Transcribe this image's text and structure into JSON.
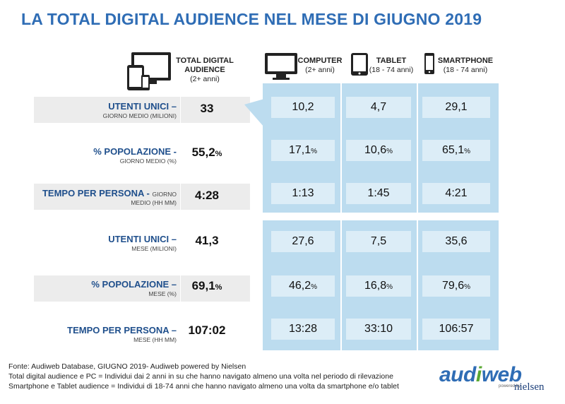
{
  "title": "LA TOTAL DIGITAL AUDIENCE NEL MESE DI GIUGNO 2019",
  "columns": [
    {
      "name": "TOTAL DIGITAL AUDIENCE",
      "sub": "(2+ anni)",
      "icon": "devices-icon"
    },
    {
      "name": "COMPUTER",
      "sub": "(2+ anni)",
      "icon": "monitor-icon"
    },
    {
      "name": "TABLET",
      "sub": "(18 - 74 anni)",
      "icon": "tablet-icon"
    },
    {
      "name": "SMARTPHONE",
      "sub": "(18 - 74 anni)",
      "icon": "smartphone-icon"
    }
  ],
  "rows": [
    {
      "label": "UTENTI UNICI –",
      "sub": "GIORNO MEDIO (MILIONI)",
      "total": "33",
      "computer": "10,2",
      "tablet": "4,7",
      "smartphone": "29,1"
    },
    {
      "label": "% POPOLAZIONE -",
      "sub": "GIORNO MEDIO (%)",
      "total": "55,2",
      "computer": "17,1",
      "tablet": "10,6",
      "smartphone": "65,1"
    },
    {
      "label": "TEMPO PER PERSONA -",
      "label_tail": "GIORNO",
      "sub": "MEDIO (HH MM)",
      "total": "4:28",
      "computer": "1:13",
      "tablet": "1:45",
      "smartphone": "4:21"
    },
    {
      "label": "UTENTI UNICI –",
      "sub": "MESE (MILIONI)",
      "total": "41,3",
      "computer": "27,6",
      "tablet": "7,5",
      "smartphone": "35,6"
    },
    {
      "label": "% POPOLAZIONE –",
      "sub": "MESE (%)",
      "total": "69,1",
      "computer": "46,2",
      "tablet": "16,8",
      "smartphone": "79,6"
    },
    {
      "label": "TEMPO PER PERSONA –",
      "sub": "MESE (HH MM)",
      "total": "107:02",
      "computer": "13:28",
      "tablet": "33:10",
      "smartphone": "106:57"
    }
  ],
  "percent_sign": "%",
  "footer": [
    "Fonte: Audiweb Database, GIUGNO 2019- Audiweb powered by Nielsen",
    "Total digital audience e PC = Individui dai 2 anni in su che hanno navigato almeno una volta nel periodo di rilevazione",
    "Smartphone e Tablet audience = Individui di 18-74 anni che hanno navigato almeno una volta da smartphone e/o tablet"
  ],
  "logo": {
    "part1": "aud",
    "part2": "i",
    "part3": "web",
    "powered": "powered by",
    "nielsen": "nielsen"
  },
  "colors": {
    "title": "#2f6db5",
    "label": "#1f4f8c",
    "panel": "#bcdcef",
    "cell": "#dcedf7",
    "band": "#ececec"
  },
  "chart_data": {
    "type": "table",
    "title": "LA TOTAL DIGITAL AUDIENCE NEL MESE DI GIUGNO 2019",
    "columns": [
      "TOTAL DIGITAL AUDIENCE",
      "COMPUTER",
      "TABLET",
      "SMARTPHONE"
    ],
    "rows": [
      [
        "UTENTI UNICI – GIORNO MEDIO (MILIONI)",
        "33",
        "10,2",
        "4,7",
        "29,1"
      ],
      [
        "% POPOLAZIONE - GIORNO MEDIO (%)",
        "55,2%",
        "17,1%",
        "10,6%",
        "65,1%"
      ],
      [
        "TEMPO PER PERSONA - GIORNO MEDIO (HH MM)",
        "4:28",
        "1:13",
        "1:45",
        "4:21"
      ],
      [
        "UTENTI UNICI – MESE (MILIONI)",
        "41,3",
        "27,6",
        "7,5",
        "35,6"
      ],
      [
        "% POPOLAZIONE – MESE (%)",
        "69,1%",
        "46,2%",
        "16,8%",
        "79,6%"
      ],
      [
        "TEMPO PER PERSONA – MESE (HH MM)",
        "107:02",
        "13:28",
        "33:10",
        "106:57"
      ]
    ]
  }
}
